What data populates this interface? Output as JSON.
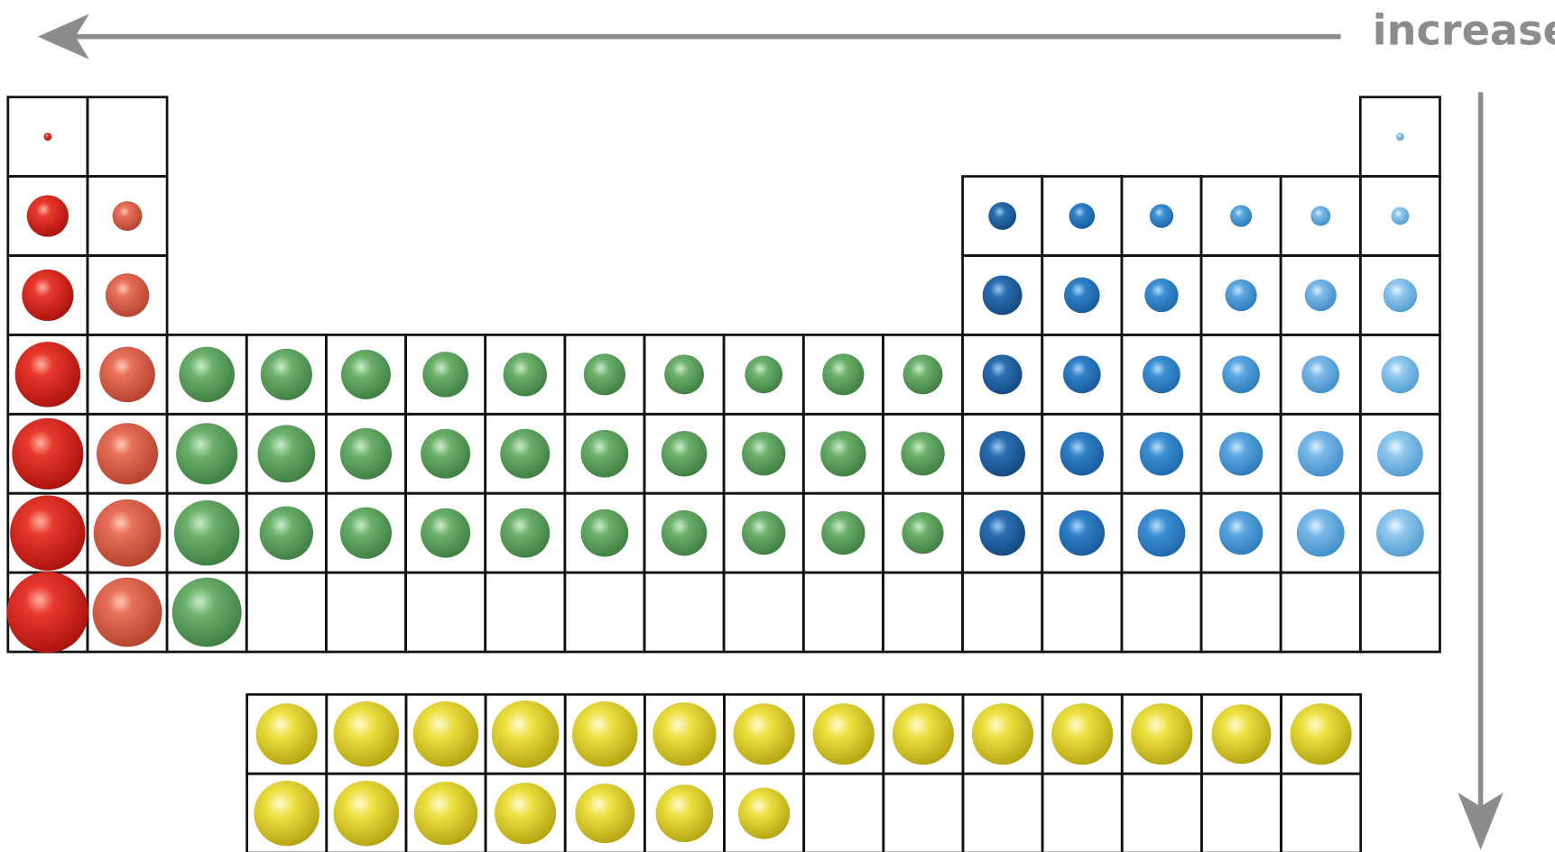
{
  "arrow_label": "increase"
}
